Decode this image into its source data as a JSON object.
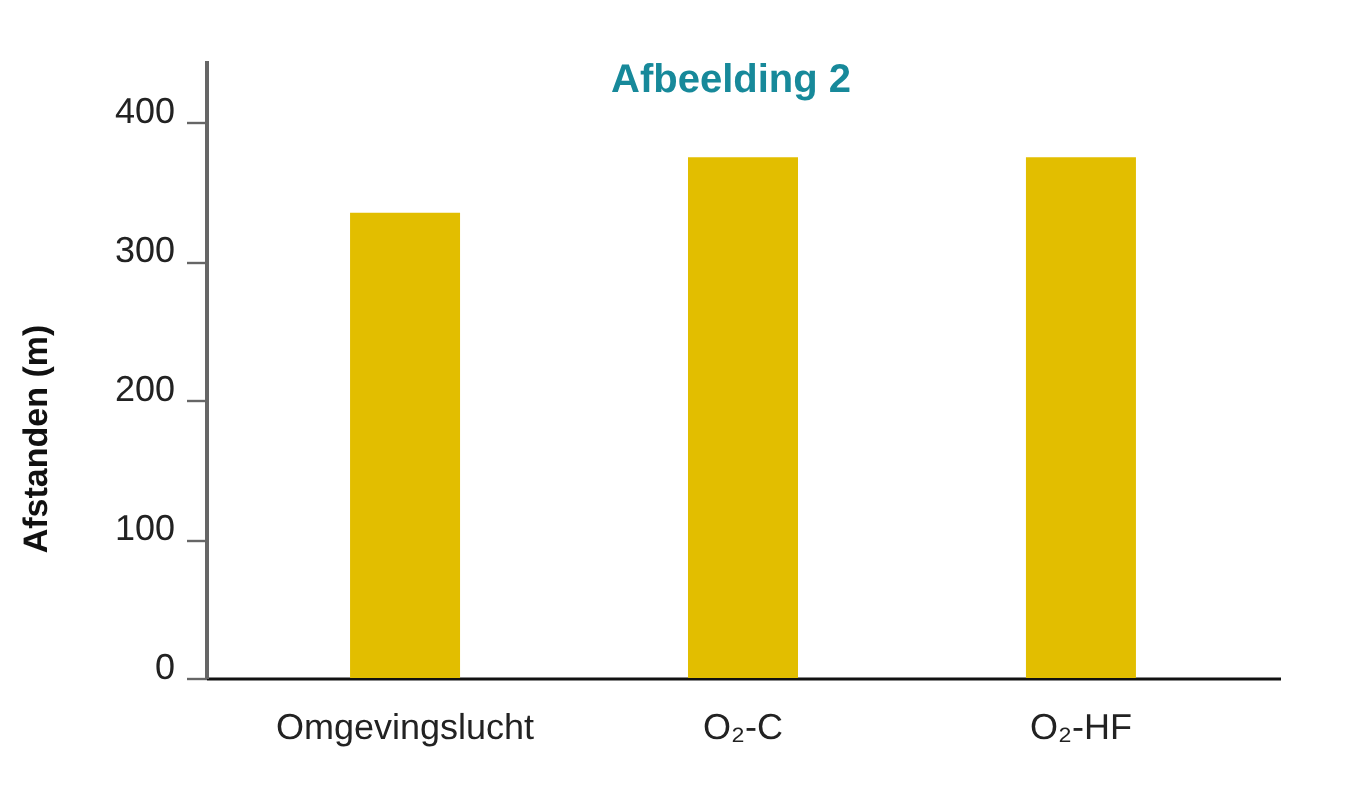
{
  "chart_data": {
    "type": "bar",
    "title": "Afbeelding 2",
    "ylabel": "Afstanden (m)",
    "categories": [
      "Omgevingslucht",
      "O₂-C",
      "O₂-HF"
    ],
    "values": [
      335,
      375,
      375
    ],
    "color": "#e2be00",
    "ylim": [
      0,
      445
    ],
    "yticks": [
      0,
      100,
      200,
      300,
      400
    ],
    "grid": false
  }
}
